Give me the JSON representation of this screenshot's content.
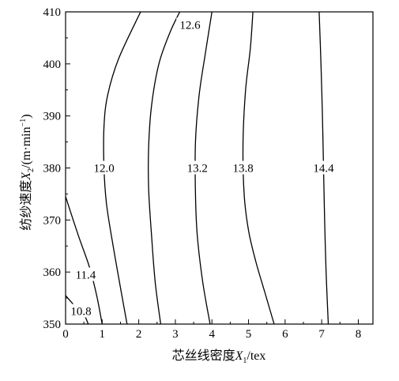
{
  "chart_data": {
    "type": "contour",
    "xlabel": "芯丝线密度X1/tex",
    "xlabel_parts": {
      "main": "芯丝线密度",
      "var": "X",
      "sub": "1",
      "unit": "/tex"
    },
    "ylabel": "纺纱速度X2/(m·min−1)",
    "ylabel_parts": {
      "main": "纺纱速度",
      "var": "X",
      "sub": "2",
      "unit_pre": "/(m·min",
      "sup": "−1",
      "unit_post": ")"
    },
    "xlim": [
      0,
      8.4
    ],
    "ylim": [
      350,
      410
    ],
    "xticks": [
      0,
      1,
      2,
      3,
      4,
      5,
      6,
      7,
      8
    ],
    "yticks": [
      350,
      360,
      370,
      380,
      390,
      400,
      410
    ],
    "grid": false,
    "levels": [
      {
        "label": "10.8",
        "label_pos": [
          0.42,
          352.5
        ],
        "points": [
          [
            0,
            355.5
          ],
          [
            0.25,
            353.5
          ],
          [
            0.5,
            351.8
          ],
          [
            0.62,
            350
          ]
        ]
      },
      {
        "label": "11.4",
        "label_pos": [
          0.55,
          359.5
        ],
        "points": [
          [
            0,
            374.5
          ],
          [
            0.35,
            367
          ],
          [
            0.65,
            361
          ],
          [
            0.85,
            355.5
          ],
          [
            1.0,
            350
          ]
        ]
      },
      {
        "label": "12.0",
        "label_pos": [
          1.05,
          380
        ],
        "points": [
          [
            1.68,
            350
          ],
          [
            1.5,
            357
          ],
          [
            1.3,
            365
          ],
          [
            1.12,
            373
          ],
          [
            1.05,
            380
          ],
          [
            1.05,
            388
          ],
          [
            1.15,
            394
          ],
          [
            1.45,
            401
          ],
          [
            2.05,
            410
          ]
        ]
      },
      {
        "label": "12.6",
        "label_pos": [
          3.4,
          407.5
        ],
        "points": [
          [
            2.6,
            350
          ],
          [
            2.45,
            358
          ],
          [
            2.35,
            367
          ],
          [
            2.27,
            376
          ],
          [
            2.27,
            384
          ],
          [
            2.35,
            392
          ],
          [
            2.55,
            400
          ],
          [
            2.85,
            406
          ],
          [
            3.12,
            410
          ]
        ]
      },
      {
        "label": "13.2",
        "label_pos": [
          3.6,
          380
        ],
        "points": [
          [
            3.95,
            350
          ],
          [
            3.75,
            358
          ],
          [
            3.6,
            367
          ],
          [
            3.55,
            375
          ],
          [
            3.55,
            385
          ],
          [
            3.65,
            394
          ],
          [
            3.82,
            402
          ],
          [
            4.0,
            410
          ]
        ]
      },
      {
        "label": "13.8",
        "label_pos": [
          4.85,
          380
        ],
        "points": [
          [
            5.7,
            350
          ],
          [
            5.45,
            356
          ],
          [
            5.2,
            362
          ],
          [
            5.0,
            368
          ],
          [
            4.88,
            375
          ],
          [
            4.85,
            385
          ],
          [
            4.92,
            395
          ],
          [
            5.05,
            403
          ],
          [
            5.12,
            410
          ]
        ]
      },
      {
        "label": "14.4",
        "label_pos": [
          7.05,
          380
        ],
        "points": [
          [
            7.18,
            350
          ],
          [
            7.12,
            360
          ],
          [
            7.08,
            370
          ],
          [
            7.05,
            380
          ],
          [
            7.02,
            390
          ],
          [
            6.98,
            400
          ],
          [
            6.93,
            410
          ]
        ]
      }
    ]
  }
}
